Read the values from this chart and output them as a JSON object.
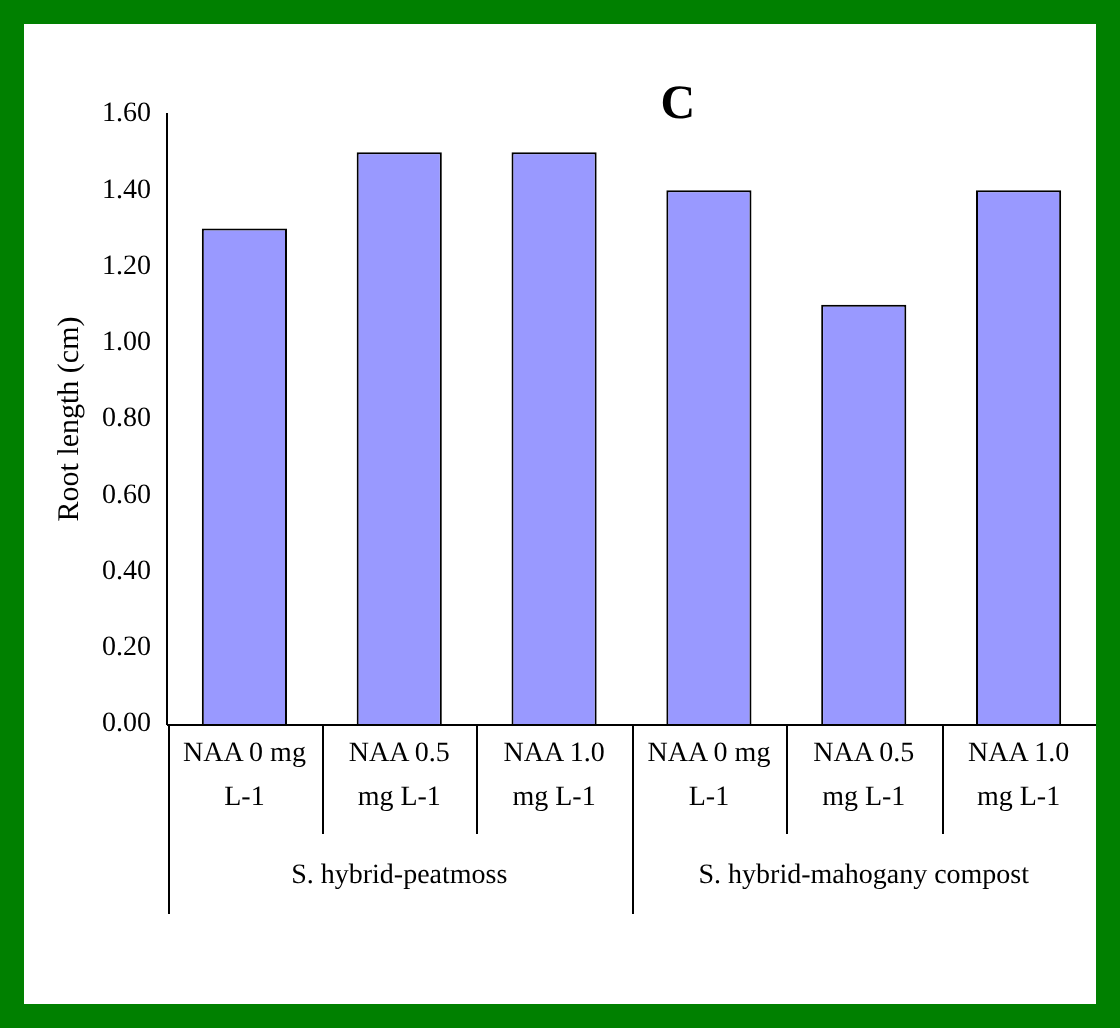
{
  "chart_data": {
    "type": "bar",
    "title": "C",
    "ylabel": "Root length (cm)",
    "categories": [
      "NAA 0 mg L-1",
      "NAA 0.5 mg L-1",
      "NAA 1.0 mg L-1",
      "NAA 0 mg L-1",
      "NAA 0.5 mg L-1",
      "NAA 1.0 mg L-1"
    ],
    "values": [
      1.3,
      1.5,
      1.5,
      1.4,
      1.1,
      1.4
    ],
    "color": "#9999ff",
    "ylim": [
      0,
      1.6
    ],
    "yticks": [
      {
        "value": 0,
        "label": "0.00"
      },
      {
        "value": 0.2,
        "label": "0.20"
      },
      {
        "value": 0.4,
        "label": "0.40"
      },
      {
        "value": 0.6,
        "label": "0.60"
      },
      {
        "value": 0.8,
        "label": "0.80"
      },
      {
        "value": 1,
        "label": "1.00"
      },
      {
        "value": 1.2,
        "label": "1.20"
      },
      {
        "value": 1.4,
        "label": "1.40"
      },
      {
        "value": 1.6,
        "label": "1.60"
      }
    ],
    "annotations": [
      "S. hybrid-peatmoss",
      "S. hybrid-mahogany compost"
    ],
    "grid": false,
    "legend": false
  }
}
